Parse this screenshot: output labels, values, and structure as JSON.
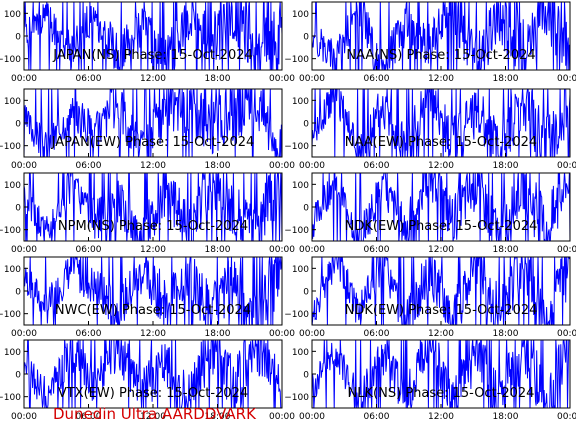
{
  "footer_label": "Dunedin Ultra AARDDVARK",
  "colors": {
    "trace": "#0000ff",
    "footer": "#d40000",
    "axes": "#000000"
  },
  "chart_data": [
    {
      "type": "line",
      "title": "JAPAN(NS) Phase: 15-Oct-2024",
      "ylim": [
        -150,
        150
      ],
      "yticks": [
        100,
        0,
        -100
      ],
      "xlim": [
        "00:00",
        "24:00"
      ],
      "xticks": [
        "00:00",
        "06:00",
        "12:00",
        "18:00",
        "00:00"
      ],
      "series": [
        {
          "values": [
            0,
            80,
            -60,
            90,
            -90,
            40,
            -120,
            60,
            -40,
            110,
            -80,
            20
          ]
        }
      ]
    },
    {
      "type": "line",
      "title": "NAA(NS) Phase: 15-Oct-2024",
      "ylim": [
        -150,
        150
      ],
      "yticks": [
        100,
        0,
        -100
      ],
      "xlim": [
        "00:00",
        "24:00"
      ],
      "xticks": [
        "00:00",
        "06:00",
        "12:00",
        "18:00",
        "00:00"
      ],
      "series": [
        {
          "values": [
            0,
            -90,
            120,
            -140,
            60,
            -30,
            130,
            -120,
            90,
            -60,
            140,
            -100
          ]
        }
      ]
    },
    {
      "type": "line",
      "title": "JAPAN(EW) Phase: 15-Oct-2024",
      "ylim": [
        -150,
        150
      ],
      "yticks": [
        100,
        0,
        -100
      ],
      "xlim": [
        "00:00",
        "24:00"
      ],
      "xticks": [
        "00:00",
        "06:00",
        "12:00",
        "18:00",
        "00:00"
      ],
      "series": [
        {
          "values": [
            20,
            -110,
            60,
            -40,
            90,
            -130,
            50,
            80,
            -20,
            40,
            100,
            -140
          ]
        }
      ]
    },
    {
      "type": "line",
      "title": "NAA(EW) Phase: 15-Oct-2024",
      "ylim": [
        -150,
        150
      ],
      "yticks": [
        100,
        0,
        -100
      ],
      "xlim": [
        "00:00",
        "24:00"
      ],
      "xticks": [
        "00:00",
        "06:00",
        "12:00",
        "18:00",
        "00:00"
      ],
      "series": [
        {
          "values": [
            -50,
            140,
            -130,
            80,
            -120,
            150,
            -90,
            60,
            -140,
            120,
            -110,
            130
          ]
        }
      ]
    },
    {
      "type": "line",
      "title": "NPM(NS) Phase: 15-Oct-2024",
      "ylim": [
        -150,
        150
      ],
      "yticks": [
        100,
        0,
        -100
      ],
      "xlim": [
        "00:00",
        "24:00"
      ],
      "xticks": [
        "00:00",
        "06:00",
        "12:00",
        "18:00",
        "00:00"
      ],
      "series": [
        {
          "values": [
            40,
            -120,
            110,
            -60,
            30,
            -140,
            70,
            -90,
            120,
            -30,
            -110,
            140
          ]
        }
      ]
    },
    {
      "type": "line",
      "title": "NDK(EW) Phase: 15-Oct-2024",
      "ylim": [
        -150,
        150
      ],
      "yticks": [
        100,
        0,
        -100
      ],
      "xlim": [
        "00:00",
        "24:00"
      ],
      "xticks": [
        "00:00",
        "06:00",
        "12:00",
        "18:00",
        "00:00"
      ],
      "series": [
        {
          "values": [
            -80,
            130,
            -140,
            90,
            -100,
            140,
            -60,
            110,
            -150,
            120,
            -130,
            150
          ]
        }
      ]
    },
    {
      "type": "line",
      "title": "NWC(EW) Phase: 15-Oct-2024",
      "ylim": [
        -150,
        150
      ],
      "yticks": [
        100,
        0,
        -100
      ],
      "xlim": [
        "00:00",
        "24:00"
      ],
      "xticks": [
        "00:00",
        "06:00",
        "12:00",
        "18:00",
        "00:00"
      ],
      "series": [
        {
          "values": [
            60,
            -70,
            100,
            20,
            -90,
            80,
            -40,
            90,
            -100,
            60,
            -140,
            150
          ]
        }
      ]
    },
    {
      "type": "line",
      "title": "NDK(EW) Phase: 15-Oct-2024",
      "ylim": [
        -150,
        150
      ],
      "yticks": [
        100,
        0,
        -100
      ],
      "xlim": [
        "00:00",
        "24:00"
      ],
      "xticks": [
        "00:00",
        "06:00",
        "12:00",
        "18:00",
        "00:00"
      ],
      "series": [
        {
          "values": [
            -120,
            140,
            -90,
            130,
            -150,
            100,
            -140,
            150,
            -110,
            140,
            -150,
            150
          ]
        }
      ]
    },
    {
      "type": "line",
      "title": "VTX(EW) Phase: 15-Oct-2024",
      "ylim": [
        -150,
        150
      ],
      "yticks": [
        100,
        0,
        -100
      ],
      "xlim": [
        "00:00",
        "24:00"
      ],
      "xticks": [
        "00:00",
        "06:00",
        "12:00",
        "18:00",
        "00:00"
      ],
      "series": [
        {
          "values": [
            30,
            -100,
            90,
            -40,
            120,
            -80,
            50,
            -110,
            130,
            -60,
            140,
            -150
          ]
        }
      ]
    },
    {
      "type": "line",
      "title": "NLK(NS) Phase: 15-Oct-2024",
      "ylim": [
        -150,
        150
      ],
      "yticks": [
        100,
        0,
        -100
      ],
      "xlim": [
        "00:00",
        "24:00"
      ],
      "xticks": [
        "00:00",
        "06:00",
        "12:00",
        "18:00",
        "00:00"
      ],
      "series": [
        {
          "values": [
            -60,
            110,
            -130,
            70,
            -100,
            140,
            -120,
            90,
            -140,
            130,
            -150,
            150
          ]
        }
      ]
    }
  ]
}
